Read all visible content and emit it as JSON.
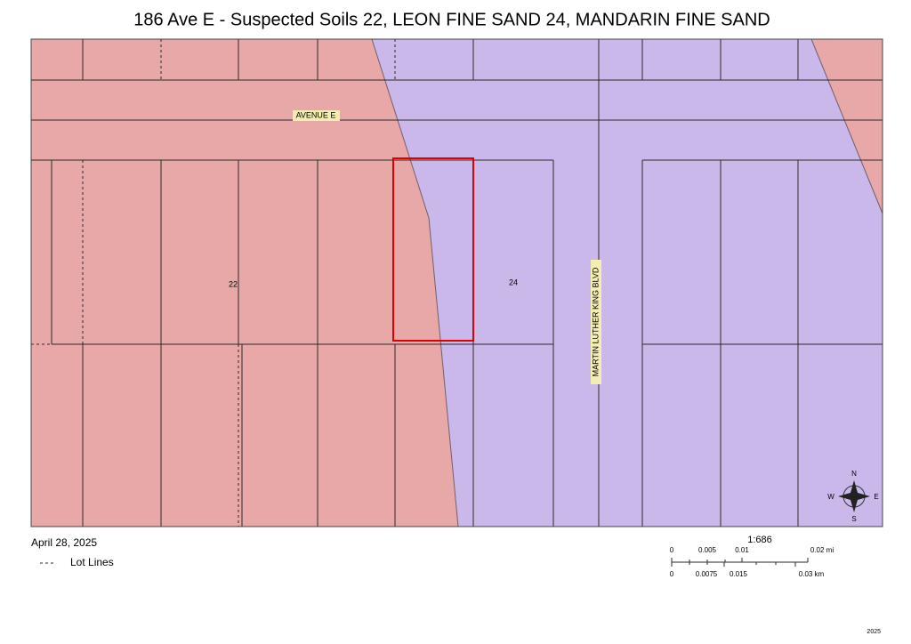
{
  "title": "186 Ave E - Suspected Soils 22, LEON FINE SAND 24, MANDARIN FINE SAND",
  "map": {
    "road_labels": [
      "AVENUE E",
      "MARTIN LUTHER KING BLVD"
    ],
    "soil_labels": [
      "22",
      "24"
    ],
    "compass": {
      "n": "N",
      "e": "E",
      "s": "S",
      "w": "W"
    }
  },
  "footer": {
    "date": "April 28, 2025",
    "legend": "Lot Lines",
    "scale": "1:686",
    "scale_mi": [
      "0",
      "0.005",
      "0.01",
      "0.02 mi"
    ],
    "scale_km": [
      "0",
      "0.0075",
      "0.015",
      "0.03 km"
    ],
    "code": "2025"
  }
}
